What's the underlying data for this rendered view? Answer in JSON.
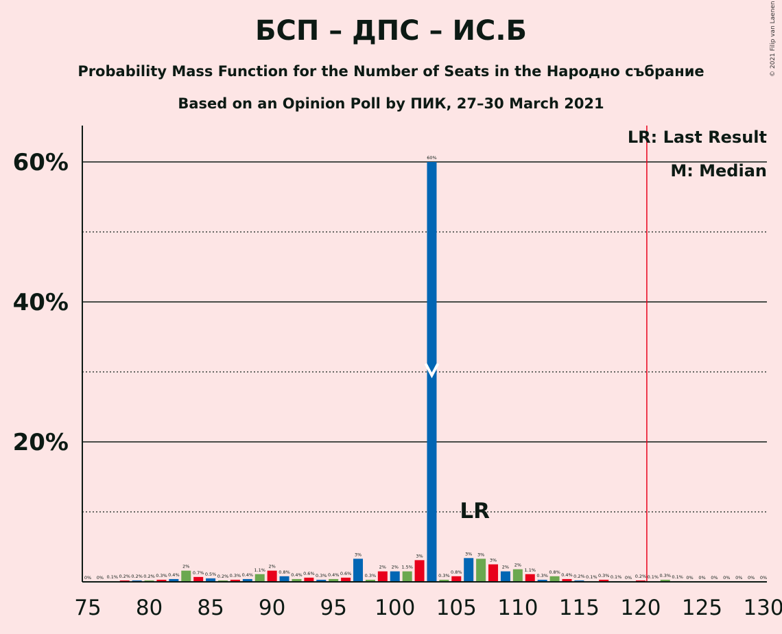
{
  "title": "БСП – ДПС – ИС.Б",
  "subtitle1": "Probability Mass Function for the Number of Seats in the Народно събрание",
  "subtitle2": "Based on an Opinion Poll by ПИК, 27–30 March 2021",
  "credit": "© 2021 Filip van Laenen",
  "legend": {
    "lr": "LR: Last Result",
    "median": "M: Median"
  },
  "colors": {
    "blue": "#0266B4",
    "green": "#6BA84F",
    "red": "#E8001B",
    "lr_line": "#E8001B",
    "background": "#FDE5E5"
  },
  "chart_data": {
    "type": "bar",
    "x": [
      75,
      76,
      77,
      78,
      79,
      80,
      81,
      82,
      83,
      84,
      85,
      86,
      87,
      88,
      89,
      90,
      91,
      92,
      93,
      94,
      95,
      96,
      97,
      98,
      99,
      100,
      101,
      102,
      103,
      104,
      105,
      106,
      107,
      108,
      109,
      110,
      111,
      112,
      113,
      114,
      115,
      116,
      117,
      118,
      119,
      120,
      121,
      122,
      123,
      124,
      125,
      126,
      127,
      128,
      129,
      130
    ],
    "values": [
      0,
      0,
      0.1,
      0.2,
      0.2,
      0.2,
      0.3,
      0.4,
      1.6,
      0.7,
      0.5,
      0.2,
      0.3,
      0.4,
      1.1,
      1.6,
      0.8,
      0.4,
      0.6,
      0.3,
      0.4,
      0.6,
      3.3,
      0.3,
      1.5,
      1.5,
      1.5,
      3.1,
      60,
      0.3,
      0.8,
      3.4,
      3.3,
      2.5,
      1.5,
      1.8,
      1.1,
      0.3,
      0.8,
      0.4,
      0.2,
      0.1,
      0.3,
      0.1,
      0,
      0.2,
      0.1,
      0.3,
      0.1,
      0,
      0,
      0,
      0,
      0,
      0,
      0
    ],
    "labels": [
      "0%",
      "0%",
      "0.1%",
      "0.2%",
      "0.2%",
      "0.2%",
      "0.3%",
      "0.4%",
      "2%",
      "0.7%",
      "0.5%",
      "0.2%",
      "0.3%",
      "0.4%",
      "1.1%",
      "2%",
      "0.8%",
      "0.4%",
      "0.6%",
      "0.3%",
      "0.4%",
      "0.6%",
      "3%",
      "0.3%",
      "2%",
      "2%",
      "1.5%",
      "3%",
      "60%",
      "0.3%",
      "0.8%",
      "3%",
      "3%",
      "3%",
      "2%",
      "2%",
      "1.1%",
      "0.3%",
      "0.8%",
      "0.4%",
      "0.2%",
      "0.1%",
      "0.3%",
      "0.1%",
      "0%",
      "0.2%",
      "0.1%",
      "0.3%",
      "0.1%",
      "0%",
      "0%",
      "0%",
      "0%",
      "0%",
      "0%",
      "0%"
    ],
    "color_cycle": [
      "red",
      "blue",
      "green"
    ],
    "xlim": [
      75,
      130
    ],
    "xticks": [
      "75",
      "80",
      "85",
      "90",
      "95",
      "100",
      "105",
      "110",
      "115",
      "120",
      "125",
      "130"
    ],
    "ylim": [
      0,
      65
    ],
    "yticks": [
      "20%",
      "40%",
      "60%"
    ],
    "median_seat": 103,
    "last_result_seat": 120.5,
    "lr_label": "LR",
    "lr_label_seat": 106.5
  }
}
